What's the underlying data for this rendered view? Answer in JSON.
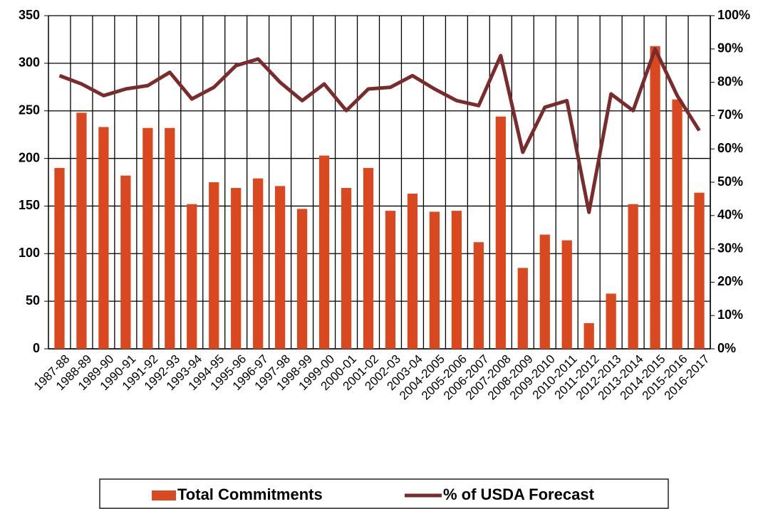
{
  "chart_data": {
    "type": "bar_line",
    "categories": [
      "1987-88",
      "1988-89",
      "1989-90",
      "1990-91",
      "1991-92",
      "1992-93",
      "1993-94",
      "1994-95",
      "1995-96",
      "1996-97",
      "1997-98",
      "1998-99",
      "1999-00",
      "2000-01",
      "2001-02",
      "2002-03",
      "2003-04",
      "2004-2005",
      "2005-2006",
      "2006-2007",
      "2007-2008",
      "2008-2009",
      "2009-2010",
      "2010-2011",
      "2011-2012",
      "2012-2013",
      "2013-2014",
      "2014-2015",
      "2015-2016",
      "2016-2017"
    ],
    "series": [
      {
        "name": "Total Commitments",
        "type": "bar",
        "color": "#d9481e",
        "values": [
          190,
          248,
          233,
          182,
          232,
          232,
          152,
          175,
          169,
          179,
          171,
          147,
          203,
          169,
          190,
          145,
          163,
          144,
          145,
          112,
          244,
          85,
          120,
          114,
          27,
          58,
          152,
          318,
          262,
          164
        ]
      },
      {
        "name": "% of USDA Forecast",
        "type": "line",
        "axis": "y2",
        "color": "#7a2c2c",
        "values": [
          82,
          79.5,
          76,
          78,
          79,
          83,
          75,
          78.5,
          85,
          87,
          80,
          74.5,
          79.5,
          71.5,
          78,
          78.5,
          82,
          78,
          74.5,
          73,
          88,
          59,
          72.5,
          74.5,
          41,
          76.5,
          71.5,
          90,
          76,
          65.5
        ]
      }
    ],
    "ylim": [
      0,
      350
    ],
    "yticks": [
      0,
      50,
      100,
      150,
      200,
      250,
      300,
      350
    ],
    "y2lim": [
      0,
      100
    ],
    "y2ticks": [
      {
        "value": 0,
        "label": "0%"
      },
      {
        "value": 10,
        "label": "10%"
      },
      {
        "value": 20,
        "label": "20%"
      },
      {
        "value": 30,
        "label": "30%"
      },
      {
        "value": 40,
        "label": "40%"
      },
      {
        "value": 50,
        "label": "50%"
      },
      {
        "value": 60,
        "label": "60%"
      },
      {
        "value": 70,
        "label": "70%"
      },
      {
        "value": 80,
        "label": "80%"
      },
      {
        "value": 90,
        "label": "90%"
      },
      {
        "value": 100,
        "label": "100%"
      }
    ],
    "grid": true,
    "legend": "bottom"
  }
}
